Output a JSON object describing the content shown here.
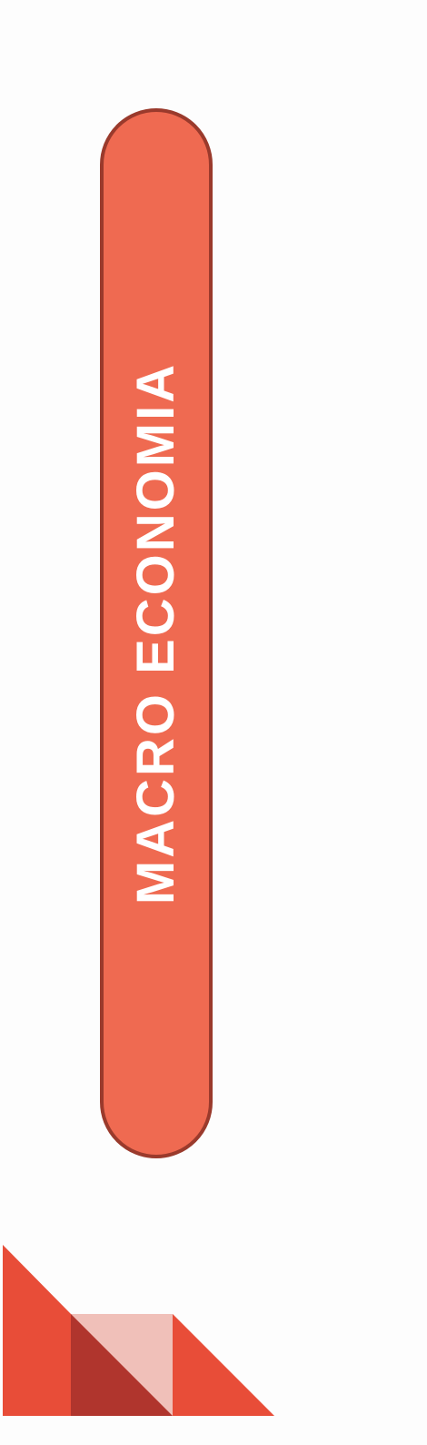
{
  "banner": {
    "label": "MACRO  ECONOMIA"
  },
  "colors": {
    "background": "#fdfdfd",
    "pill_fill": "#ef6a51",
    "pill_border": "#9a3a2c",
    "label_text": "#ffffff",
    "shape_primary": "#e84d38",
    "shape_dark": "#b0352d",
    "shape_light": "#f0c0b9"
  },
  "icons": {
    "corner_decoration": "geometric-triangles"
  }
}
